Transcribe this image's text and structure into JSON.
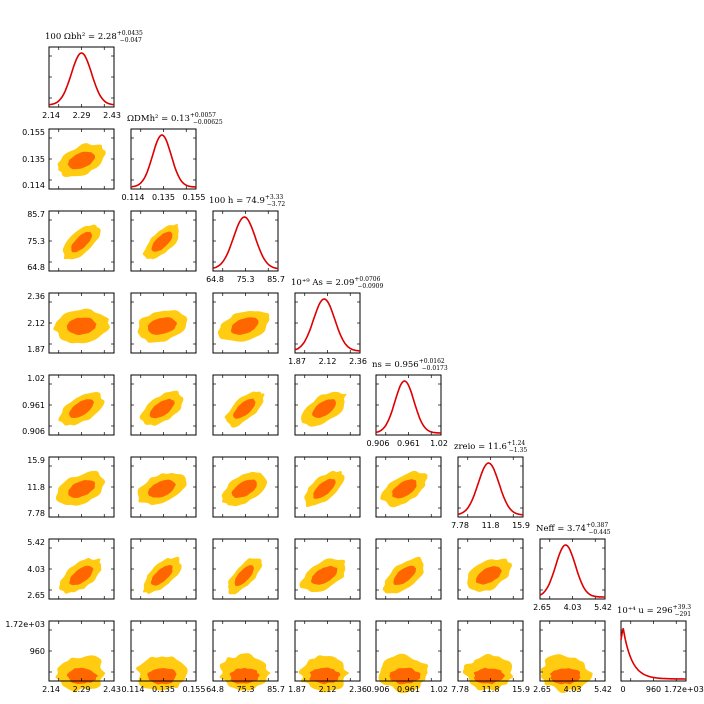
{
  "chart_data": {
    "type": "corner",
    "colors": {
      "inner": "#ff6600",
      "outer": "#ffcc11",
      "curve": "#dd0000",
      "frame": "#000000"
    },
    "parameters": [
      {
        "name": "100_omega_b",
        "title": "100 Ωbh² = 2.28",
        "err_up": "+0.0435",
        "err_down": "−0.047",
        "ticks": [
          "2.14",
          "2.29",
          "2.43"
        ],
        "range": [
          2.14,
          2.43
        ],
        "mean": 2.285,
        "sigma": 0.045
      },
      {
        "name": "omega_dmh2",
        "title": "ΩDMh² = 0.13",
        "err_up": "+0.0057",
        "err_down": "−0.00625",
        "ticks": [
          "0.114",
          "0.135",
          "0.155"
        ],
        "range": [
          0.114,
          0.155
        ],
        "mean": 0.1335,
        "sigma": 0.0059
      },
      {
        "name": "100_h",
        "title": "100 h = 74.9",
        "err_up": "+3.33",
        "err_down": "−3.72",
        "ticks": [
          "64.8",
          "75.3",
          "85.7"
        ],
        "range": [
          64.8,
          85.7
        ],
        "mean": 74.9,
        "sigma": 3.5
      },
      {
        "name": "1e9_A_s",
        "title": "10⁺⁹ As = 2.09",
        "err_up": "+0.0706",
        "err_down": "−0.0909",
        "ticks": [
          "1.87",
          "2.12",
          "2.36"
        ],
        "range": [
          1.87,
          2.36
        ],
        "mean": 2.09,
        "sigma": 0.08
      },
      {
        "name": "n_s",
        "title": "ns = 0.956",
        "err_up": "+0.0162",
        "err_down": "−0.0173",
        "ticks": [
          "0.906",
          "0.961",
          "1.02"
        ],
        "range": [
          0.906,
          1.02
        ],
        "mean": 0.956,
        "sigma": 0.0168
      },
      {
        "name": "z_reio",
        "title": "zreio = 11.6",
        "err_up": "+1.24",
        "err_down": "−1.35",
        "ticks": [
          "7.78",
          "11.8",
          "15.9"
        ],
        "range": [
          7.78,
          15.9
        ],
        "mean": 11.6,
        "sigma": 1.3
      },
      {
        "name": "N_eff",
        "title": "Neff = 3.74",
        "err_up": "+0.387",
        "err_down": "−0.445",
        "ticks": [
          "2.65",
          "4.03",
          "5.42"
        ],
        "range": [
          2.65,
          5.42
        ],
        "mean": 3.74,
        "sigma": 0.42
      },
      {
        "name": "1e4_u",
        "title": "10⁺⁴ u = 296",
        "err_up": "+39.3",
        "err_down": "−291",
        "ticks": [
          "0",
          "960",
          "1.72e+03"
        ],
        "range": [
          0,
          1720
        ],
        "mean": 296,
        "sigma": 300
      }
    ],
    "row_tick_labels": [
      [
        "0.155",
        "0.135",
        "0.114"
      ],
      [
        "85.7",
        "75.3",
        "64.8"
      ],
      [
        "2.36",
        "2.12",
        "1.87"
      ],
      [
        "1.02",
        "0.961",
        "0.906"
      ],
      [
        "15.9",
        "11.8",
        "7.78"
      ],
      [
        "5.42",
        "4.03",
        "2.65"
      ],
      [
        "1.72e+03",
        "960"
      ]
    ],
    "contour_levels": [
      "68%",
      "95%"
    ]
  }
}
